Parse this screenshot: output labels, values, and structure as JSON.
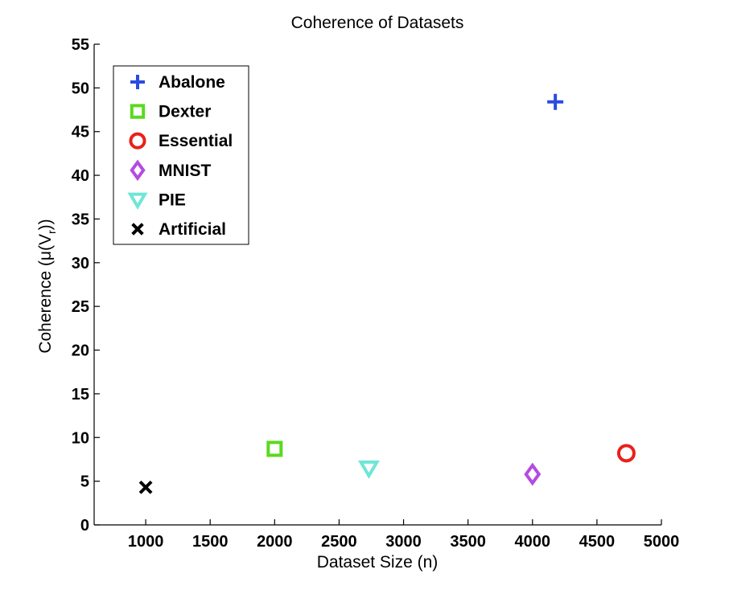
{
  "chart_data": {
    "type": "scatter",
    "title": "Coherence of Datasets",
    "xlabel": "Dataset Size (n)",
    "ylabel": "Coherence (μ(V",
    "ylabel_sub": "r",
    "ylabel_tail": "))",
    "xlim": [
      600,
      5000
    ],
    "ylim": [
      0,
      55
    ],
    "xticks": [
      1000,
      1500,
      2000,
      2500,
      3000,
      3500,
      4000,
      4500,
      5000
    ],
    "yticks": [
      0,
      5,
      10,
      15,
      20,
      25,
      30,
      35,
      40,
      45,
      50,
      55
    ],
    "grid": false,
    "legend_position": "top-left",
    "series": [
      {
        "name": "Abalone",
        "marker": "plus",
        "color": "#2b4bdf",
        "x": [
          4177
        ],
        "y": [
          48.4
        ]
      },
      {
        "name": "Dexter",
        "marker": "square",
        "color": "#5bd91f",
        "x": [
          2000
        ],
        "y": [
          8.7
        ]
      },
      {
        "name": "Essential",
        "marker": "circle",
        "color": "#e8211a",
        "x": [
          4728
        ],
        "y": [
          8.2
        ]
      },
      {
        "name": "MNIST",
        "marker": "diamond",
        "color": "#b44ce0",
        "x": [
          4000
        ],
        "y": [
          5.8
        ]
      },
      {
        "name": "PIE",
        "marker": "triangle-down",
        "color": "#6fe6d6",
        "x": [
          2731
        ],
        "y": [
          6.5
        ]
      },
      {
        "name": "Artificial",
        "marker": "x",
        "color": "#000000",
        "x": [
          1000
        ],
        "y": [
          4.3
        ]
      }
    ]
  }
}
